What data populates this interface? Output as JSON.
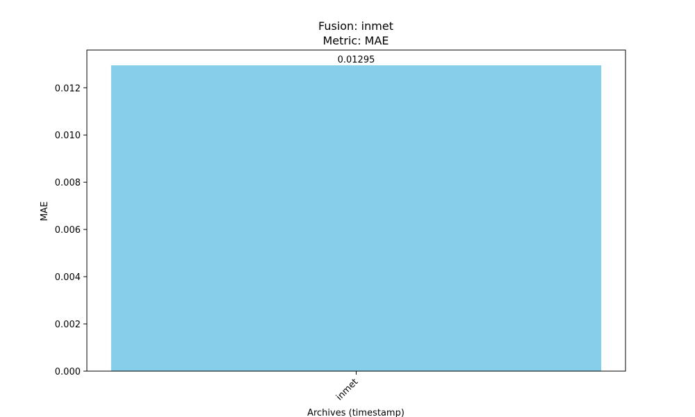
{
  "chart_data": {
    "type": "bar",
    "title": "Fusion: inmet",
    "subtitle": "Metric: MAE",
    "xlabel": "Archives (timestamp)",
    "ylabel": "MAE",
    "categories": [
      "inmet"
    ],
    "values": [
      0.01295
    ],
    "value_labels": [
      "0.01295"
    ],
    "ylim": [
      0,
      0.01295
    ],
    "yticks": [
      0,
      0.002,
      0.004,
      0.006,
      0.008,
      0.01,
      0.012
    ],
    "ytick_labels": [
      "0.000",
      "0.002",
      "0.004",
      "0.006",
      "0.008",
      "0.010",
      "0.012"
    ],
    "bar_color": "#87ceeb",
    "grid": false,
    "legend": "none"
  }
}
